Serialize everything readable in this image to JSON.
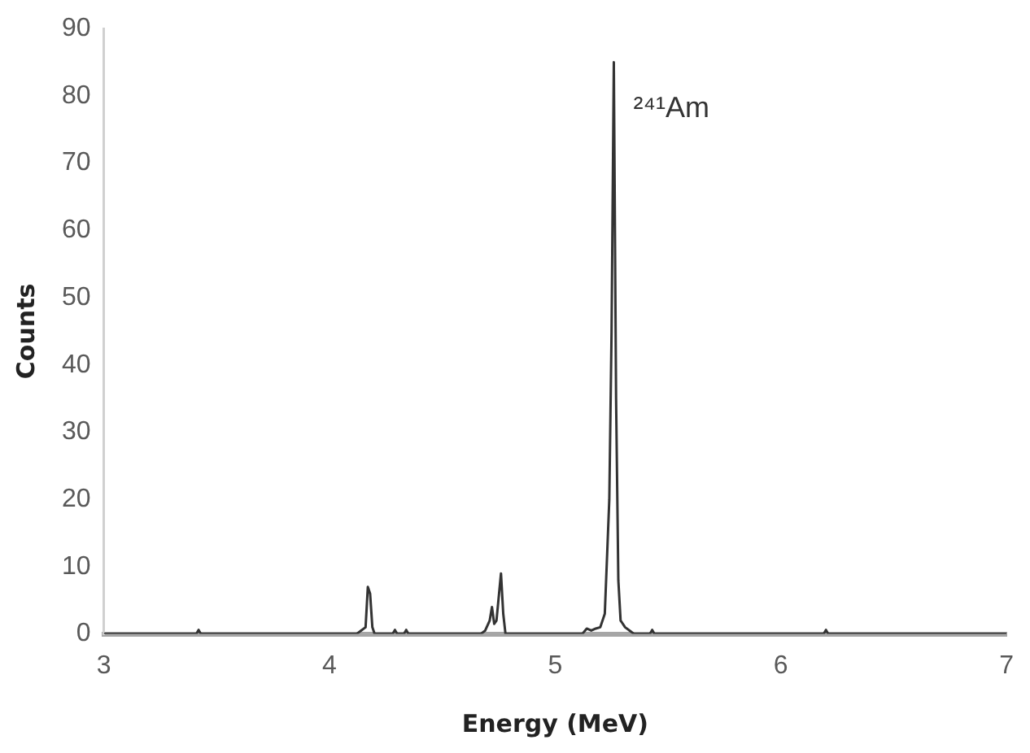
{
  "chart_data": {
    "type": "line",
    "xlabel": "Energy (MeV)",
    "ylabel": "Counts",
    "annotations": [
      {
        "text": "²⁴¹Am",
        "x": 5.26,
        "y": 85
      }
    ],
    "xlim": [
      3,
      7
    ],
    "xticks": [
      3,
      4,
      5,
      6,
      7
    ],
    "ylim": [
      0,
      90
    ],
    "yticks": [
      0,
      10,
      20,
      30,
      40,
      50,
      60,
      70,
      80,
      90
    ],
    "series": [
      {
        "color": "#333333",
        "x": [
          3.0,
          3.41,
          3.42,
          3.43,
          4.12,
          4.14,
          4.16,
          4.17,
          4.18,
          4.19,
          4.2,
          4.28,
          4.29,
          4.3,
          4.33,
          4.34,
          4.35,
          4.67,
          4.69,
          4.71,
          4.72,
          4.73,
          4.74,
          4.76,
          4.77,
          4.78,
          5.12,
          5.14,
          5.16,
          5.18,
          5.2,
          5.22,
          5.24,
          5.25,
          5.26,
          5.27,
          5.28,
          5.29,
          5.31,
          5.33,
          5.35,
          5.42,
          5.43,
          5.44,
          6.19,
          6.2,
          6.21,
          7.0
        ],
        "values": [
          0,
          0,
          0.6,
          0,
          0,
          0.5,
          1,
          7,
          6,
          1,
          0,
          0,
          0.6,
          0,
          0,
          0.6,
          0,
          0,
          0.5,
          2,
          4,
          1.5,
          2,
          9,
          3,
          0,
          0,
          0.8,
          0.5,
          0.8,
          1,
          3,
          20,
          45,
          85,
          35,
          8,
          2,
          1,
          0.5,
          0,
          0,
          0.6,
          0,
          0,
          0.6,
          0,
          0
        ]
      }
    ]
  }
}
